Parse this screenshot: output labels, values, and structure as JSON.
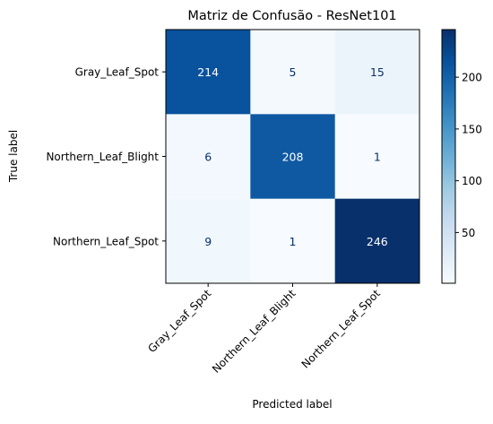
{
  "chart_data": {
    "type": "heatmap",
    "title": "Matriz de Confusão - ResNet101",
    "xlabel": "Predicted label",
    "ylabel": "True label",
    "row_labels": [
      "Gray_Leaf_Spot",
      "Northern_Leaf_Blight",
      "Northern_Leaf_Spot"
    ],
    "col_labels": [
      "Gray_Leaf_Spot",
      "Northern_Leaf_Blight",
      "Northern_Leaf_Spot"
    ],
    "values": [
      [
        214,
        5,
        15
      ],
      [
        6,
        208,
        1
      ],
      [
        9,
        1,
        246
      ]
    ],
    "colormap": "Blues",
    "colorbar": {
      "vmin": 1,
      "vmax": 246,
      "ticks": [
        50,
        100,
        150,
        200
      ]
    },
    "colors": {
      "low_text": "#08306b",
      "high_text": "#ffffff"
    }
  }
}
